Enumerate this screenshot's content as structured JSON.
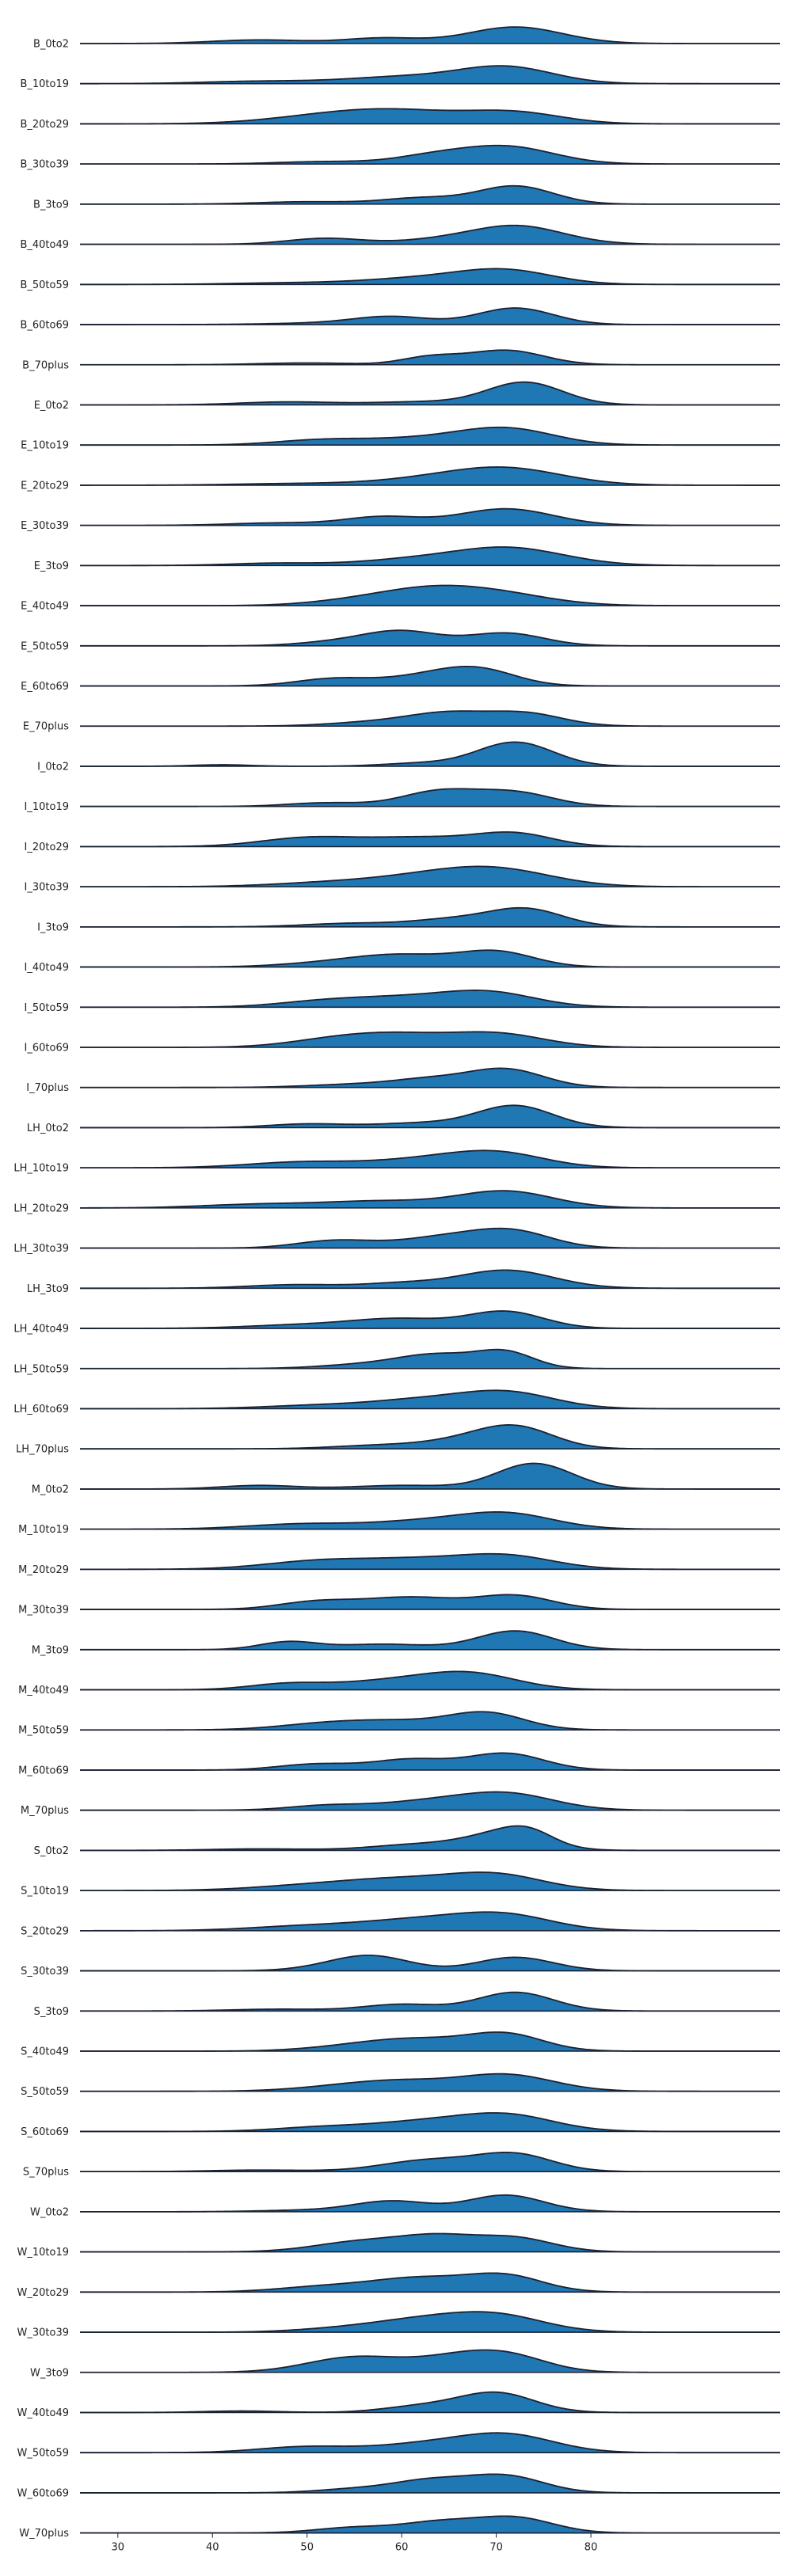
{
  "chart_data": {
    "type": "ridgeline",
    "xlim": [
      26,
      100
    ],
    "xticks": [
      30,
      40,
      50,
      60,
      70,
      80
    ],
    "fill_color": "#1f77b4",
    "line_color": "#1a2233",
    "rows": [
      {
        "label": "B_0to2",
        "p": [
          [
            45,
            0.12,
            5
          ],
          [
            58,
            0.18,
            4
          ],
          [
            72,
            0.55,
            5
          ]
        ]
      },
      {
        "label": "B_10to19",
        "p": [
          [
            45,
            0.08,
            6
          ],
          [
            60,
            0.22,
            6
          ],
          [
            71,
            0.55,
            5
          ]
        ]
      },
      {
        "label": "B_20to29",
        "p": [
          [
            50,
            0.12,
            6
          ],
          [
            59,
            0.45,
            7
          ],
          [
            72,
            0.35,
            5
          ]
        ]
      },
      {
        "label": "B_30to39",
        "p": [
          [
            52,
            0.08,
            5
          ],
          [
            63,
            0.22,
            4
          ],
          [
            71,
            0.58,
            5
          ]
        ]
      },
      {
        "label": "B_3to9",
        "p": [
          [
            50,
            0.08,
            5
          ],
          [
            62,
            0.2,
            4
          ],
          [
            72,
            0.6,
            4
          ]
        ]
      },
      {
        "label": "B_40to49",
        "p": [
          [
            52,
            0.2,
            4
          ],
          [
            63,
            0.1,
            4
          ],
          [
            72,
            0.62,
            5
          ]
        ]
      },
      {
        "label": "B_50to59",
        "p": [
          [
            48,
            0.05,
            6
          ],
          [
            62,
            0.2,
            6
          ],
          [
            71,
            0.45,
            5
          ]
        ]
      },
      {
        "label": "B_60to69",
        "p": [
          [
            52,
            0.05,
            6
          ],
          [
            59,
            0.25,
            4
          ],
          [
            72,
            0.55,
            4
          ]
        ]
      },
      {
        "label": "B_70plus",
        "p": [
          [
            50,
            0.06,
            5
          ],
          [
            63,
            0.25,
            3
          ],
          [
            71,
            0.48,
            4
          ]
        ]
      },
      {
        "label": "E_0to2",
        "p": [
          [
            48,
            0.1,
            5
          ],
          [
            62,
            0.1,
            5
          ],
          [
            73,
            0.75,
            4
          ]
        ]
      },
      {
        "label": "E_10to19",
        "p": [
          [
            52,
            0.18,
            5
          ],
          [
            62,
            0.18,
            5
          ],
          [
            71,
            0.55,
            5
          ]
        ]
      },
      {
        "label": "E_20to29",
        "p": [
          [
            48,
            0.05,
            6
          ],
          [
            62,
            0.15,
            6
          ],
          [
            71,
            0.55,
            6
          ]
        ]
      },
      {
        "label": "E_30to39",
        "p": [
          [
            47,
            0.08,
            5
          ],
          [
            58,
            0.28,
            4
          ],
          [
            71,
            0.55,
            5
          ]
        ]
      },
      {
        "label": "E_3to9",
        "p": [
          [
            47,
            0.08,
            5
          ],
          [
            60,
            0.15,
            5
          ],
          [
            71,
            0.6,
            6
          ]
        ]
      },
      {
        "label": "E_40to49",
        "p": [
          [
            55,
            0.15,
            5
          ],
          [
            62,
            0.35,
            5
          ],
          [
            69,
            0.45,
            6
          ]
        ]
      },
      {
        "label": "E_50to59",
        "p": [
          [
            53,
            0.12,
            4
          ],
          [
            60,
            0.48,
            4
          ],
          [
            71,
            0.42,
            4
          ]
        ]
      },
      {
        "label": "E_60to69",
        "p": [
          [
            53,
            0.25,
            4
          ],
          [
            62,
            0.25,
            4
          ],
          [
            68,
            0.55,
            4
          ]
        ]
      },
      {
        "label": "E_70plus",
        "p": [
          [
            58,
            0.15,
            5
          ],
          [
            65,
            0.38,
            4
          ],
          [
            73,
            0.42,
            4
          ]
        ]
      },
      {
        "label": "I_0to2",
        "p": [
          [
            41,
            0.05,
            3
          ],
          [
            62,
            0.1,
            4
          ],
          [
            72,
            0.8,
            4
          ]
        ]
      },
      {
        "label": "I_10to19",
        "p": [
          [
            52,
            0.12,
            4
          ],
          [
            64,
            0.5,
            4
          ],
          [
            72,
            0.45,
            4
          ]
        ]
      },
      {
        "label": "I_20to29",
        "p": [
          [
            50,
            0.28,
            5
          ],
          [
            62,
            0.3,
            6
          ],
          [
            72,
            0.4,
            4
          ]
        ]
      },
      {
        "label": "I_30to39",
        "p": [
          [
            52,
            0.12,
            6
          ],
          [
            62,
            0.25,
            6
          ],
          [
            70,
            0.55,
            6
          ]
        ]
      },
      {
        "label": "I_3to9",
        "p": [
          [
            55,
            0.12,
            5
          ],
          [
            65,
            0.22,
            4
          ],
          [
            73,
            0.6,
            4
          ]
        ]
      },
      {
        "label": "I_40to49",
        "p": [
          [
            52,
            0.12,
            5
          ],
          [
            60,
            0.38,
            5
          ],
          [
            70,
            0.5,
            4
          ]
        ]
      },
      {
        "label": "I_50to59",
        "p": [
          [
            52,
            0.2,
            5
          ],
          [
            60,
            0.25,
            5
          ],
          [
            69,
            0.5,
            5
          ]
        ]
      },
      {
        "label": "I_60to69",
        "p": [
          [
            53,
            0.25,
            5
          ],
          [
            60,
            0.35,
            5
          ],
          [
            70,
            0.45,
            5
          ]
        ]
      },
      {
        "label": "I_70plus",
        "p": [
          [
            55,
            0.1,
            5
          ],
          [
            63,
            0.25,
            4
          ],
          [
            71,
            0.6,
            4
          ]
        ]
      },
      {
        "label": "LH_0to2",
        "p": [
          [
            50,
            0.12,
            4
          ],
          [
            62,
            0.15,
            5
          ],
          [
            72,
            0.72,
            4
          ]
        ]
      },
      {
        "label": "LH_10to19",
        "p": [
          [
            50,
            0.2,
            6
          ],
          [
            62,
            0.22,
            5
          ],
          [
            70,
            0.5,
            5
          ]
        ]
      },
      {
        "label": "LH_20to29",
        "p": [
          [
            45,
            0.12,
            6
          ],
          [
            58,
            0.22,
            6
          ],
          [
            71,
            0.55,
            5
          ]
        ]
      },
      {
        "label": "LH_30to39",
        "p": [
          [
            53,
            0.25,
            4
          ],
          [
            65,
            0.38,
            5
          ],
          [
            72,
            0.48,
            4
          ]
        ]
      },
      {
        "label": "LH_3to9",
        "p": [
          [
            49,
            0.12,
            5
          ],
          [
            60,
            0.15,
            4
          ],
          [
            71,
            0.6,
            5
          ]
        ]
      },
      {
        "label": "LH_40to49",
        "p": [
          [
            50,
            0.12,
            6
          ],
          [
            60,
            0.3,
            5
          ],
          [
            71,
            0.55,
            4
          ]
        ]
      },
      {
        "label": "LH_50to59",
        "p": [
          [
            57,
            0.15,
            5
          ],
          [
            64,
            0.42,
            4
          ],
          [
            71,
            0.52,
            3
          ]
        ]
      },
      {
        "label": "LH_60to69",
        "p": [
          [
            52,
            0.12,
            6
          ],
          [
            62,
            0.25,
            5
          ],
          [
            71,
            0.55,
            5
          ]
        ]
      },
      {
        "label": "LH_70plus",
        "p": [
          [
            58,
            0.12,
            5
          ],
          [
            66,
            0.2,
            4
          ],
          [
            72,
            0.72,
            4
          ]
        ]
      },
      {
        "label": "M_0to2",
        "p": [
          [
            45,
            0.12,
            4
          ],
          [
            60,
            0.12,
            5
          ],
          [
            74,
            0.85,
            4
          ]
        ]
      },
      {
        "label": "M_10to19",
        "p": [
          [
            50,
            0.18,
            6
          ],
          [
            62,
            0.22,
            5
          ],
          [
            71,
            0.52,
            5
          ]
        ]
      },
      {
        "label": "M_20to29",
        "p": [
          [
            52,
            0.3,
            6
          ],
          [
            62,
            0.25,
            5
          ],
          [
            71,
            0.45,
            5
          ]
        ]
      },
      {
        "label": "M_30to39",
        "p": [
          [
            51,
            0.25,
            4
          ],
          [
            61,
            0.4,
            5
          ],
          [
            72,
            0.45,
            4
          ]
        ]
      },
      {
        "label": "M_3to9",
        "p": [
          [
            48,
            0.25,
            3
          ],
          [
            58,
            0.18,
            5
          ],
          [
            72,
            0.62,
            4
          ]
        ]
      },
      {
        "label": "M_40to49",
        "p": [
          [
            48,
            0.2,
            4
          ],
          [
            58,
            0.25,
            5
          ],
          [
            67,
            0.55,
            5
          ]
        ]
      },
      {
        "label": "M_50to59",
        "p": [
          [
            52,
            0.2,
            5
          ],
          [
            60,
            0.25,
            5
          ],
          [
            69,
            0.55,
            4
          ]
        ]
      },
      {
        "label": "M_60to69",
        "p": [
          [
            51,
            0.2,
            4
          ],
          [
            61,
            0.35,
            4
          ],
          [
            71,
            0.55,
            4
          ]
        ]
      },
      {
        "label": "M_70plus",
        "p": [
          [
            52,
            0.15,
            4
          ],
          [
            62,
            0.25,
            5
          ],
          [
            71,
            0.55,
            5
          ]
        ]
      },
      {
        "label": "S_0to2",
        "p": [
          [
            45,
            0.05,
            5
          ],
          [
            62,
            0.2,
            5
          ],
          [
            71,
            0.55,
            4
          ],
          [
            73.5,
            0.3,
            2.5
          ]
        ]
      },
      {
        "label": "S_10to19",
        "p": [
          [
            50,
            0.15,
            6
          ],
          [
            60,
            0.35,
            6
          ],
          [
            70,
            0.5,
            5
          ]
        ]
      },
      {
        "label": "S_20to29",
        "p": [
          [
            50,
            0.15,
            6
          ],
          [
            62,
            0.35,
            6
          ],
          [
            71,
            0.48,
            5
          ]
        ]
      },
      {
        "label": "S_30to39",
        "p": [
          [
            53,
            0.1,
            4
          ],
          [
            57,
            0.45,
            4
          ],
          [
            72,
            0.45,
            4
          ]
        ]
      },
      {
        "label": "S_3to9",
        "p": [
          [
            47,
            0.06,
            5
          ],
          [
            60,
            0.22,
            4
          ],
          [
            72,
            0.62,
            4
          ]
        ]
      },
      {
        "label": "S_40to49",
        "p": [
          [
            55,
            0.15,
            5
          ],
          [
            62,
            0.35,
            5
          ],
          [
            71,
            0.55,
            4
          ]
        ]
      },
      {
        "label": "S_50to59",
        "p": [
          [
            53,
            0.12,
            5
          ],
          [
            60,
            0.3,
            5
          ],
          [
            71,
            0.55,
            5
          ]
        ]
      },
      {
        "label": "S_60to69",
        "p": [
          [
            52,
            0.15,
            5
          ],
          [
            62,
            0.28,
            5
          ],
          [
            71,
            0.55,
            5
          ]
        ]
      },
      {
        "label": "S_70plus",
        "p": [
          [
            45,
            0.05,
            5
          ],
          [
            63,
            0.38,
            5
          ],
          [
            72,
            0.55,
            4
          ]
        ]
      },
      {
        "label": "W_0to2",
        "p": [
          [
            50,
            0.05,
            5
          ],
          [
            59,
            0.35,
            4
          ],
          [
            71,
            0.55,
            4
          ]
        ]
      },
      {
        "label": "W_10to19",
        "p": [
          [
            56,
            0.35,
            5
          ],
          [
            64,
            0.45,
            4
          ],
          [
            72,
            0.45,
            4
          ]
        ]
      },
      {
        "label": "W_20to29",
        "p": [
          [
            52,
            0.18,
            5
          ],
          [
            62,
            0.45,
            5
          ],
          [
            71,
            0.52,
            4
          ]
        ]
      },
      {
        "label": "W_30to39",
        "p": [
          [
            54,
            0.12,
            5
          ],
          [
            62,
            0.35,
            5
          ],
          [
            70,
            0.55,
            5
          ]
        ]
      },
      {
        "label": "W_3to9",
        "p": [
          [
            55,
            0.5,
            5
          ],
          [
            67,
            0.55,
            5
          ],
          [
            72,
            0.3,
            4
          ]
        ]
      },
      {
        "label": "W_40to49",
        "p": [
          [
            43,
            0.05,
            4
          ],
          [
            62,
            0.2,
            4
          ],
          [
            70,
            0.65,
            4
          ]
        ]
      },
      {
        "label": "W_50to59",
        "p": [
          [
            50,
            0.2,
            5
          ],
          [
            62,
            0.25,
            5
          ],
          [
            71,
            0.6,
            5
          ]
        ]
      },
      {
        "label": "W_60to69",
        "p": [
          [
            55,
            0.12,
            4
          ],
          [
            63,
            0.4,
            4
          ],
          [
            71,
            0.55,
            4
          ]
        ]
      },
      {
        "label": "W_70plus",
        "p": [
          [
            55,
            0.18,
            4
          ],
          [
            64,
            0.35,
            4
          ],
          [
            72,
            0.5,
            4
          ]
        ]
      }
    ]
  }
}
